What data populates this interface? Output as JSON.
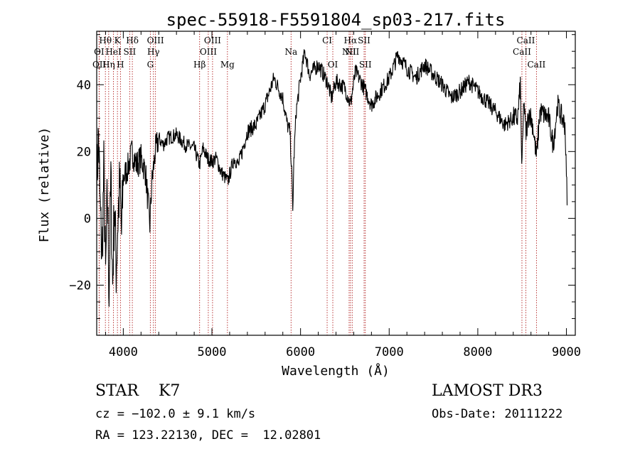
{
  "chart_data": {
    "type": "line",
    "title": "spec-55918-F5591804_sp03-217.fits",
    "xlabel": "Wavelength (Å)",
    "ylabel": "Flux (relative)",
    "xlim": [
      3700,
      9100
    ],
    "ylim": [
      -35,
      56
    ],
    "xticks": [
      4000,
      5000,
      6000,
      7000,
      8000,
      9000
    ],
    "yticks": [
      -20,
      0,
      20,
      40
    ],
    "grid": false,
    "line_color": "#000000",
    "marker_color": "#b22222",
    "spectrum_nodes": [
      [
        3700,
        10
      ],
      [
        3720,
        25
      ],
      [
        3740,
        2
      ],
      [
        3760,
        -12
      ],
      [
        3780,
        14
      ],
      [
        3800,
        -18
      ],
      [
        3820,
        8
      ],
      [
        3840,
        -22
      ],
      [
        3860,
        12
      ],
      [
        3880,
        -20
      ],
      [
        3900,
        5
      ],
      [
        3920,
        -15
      ],
      [
        3940,
        0
      ],
      [
        3960,
        10
      ],
      [
        3980,
        -5
      ],
      [
        4000,
        12
      ],
      [
        4050,
        15
      ],
      [
        4100,
        20
      ],
      [
        4150,
        16
      ],
      [
        4200,
        18
      ],
      [
        4250,
        14
      ],
      [
        4300,
        -2
      ],
      [
        4320,
        10
      ],
      [
        4360,
        20
      ],
      [
        4400,
        24
      ],
      [
        4450,
        22
      ],
      [
        4500,
        24
      ],
      [
        4600,
        25
      ],
      [
        4700,
        22
      ],
      [
        4800,
        21
      ],
      [
        4860,
        16
      ],
      [
        4900,
        21
      ],
      [
        4950,
        18
      ],
      [
        5000,
        17
      ],
      [
        5050,
        18
      ],
      [
        5100,
        14
      ],
      [
        5180,
        11
      ],
      [
        5250,
        18
      ],
      [
        5300,
        16
      ],
      [
        5400,
        26
      ],
      [
        5500,
        28
      ],
      [
        5600,
        34
      ],
      [
        5700,
        42
      ],
      [
        5800,
        36
      ],
      [
        5850,
        28
      ],
      [
        5880,
        26
      ],
      [
        5900,
        14
      ],
      [
        5912,
        2
      ],
      [
        5925,
        18
      ],
      [
        5950,
        32
      ],
      [
        6000,
        42
      ],
      [
        6050,
        50
      ],
      [
        6100,
        43
      ],
      [
        6200,
        46
      ],
      [
        6300,
        41
      ],
      [
        6350,
        36
      ],
      [
        6400,
        41
      ],
      [
        6500,
        39
      ],
      [
        6563,
        34
      ],
      [
        6620,
        44
      ],
      [
        6700,
        40
      ],
      [
        6800,
        34
      ],
      [
        6900,
        38
      ],
      [
        7000,
        42
      ],
      [
        7100,
        49
      ],
      [
        7200,
        45
      ],
      [
        7300,
        42
      ],
      [
        7400,
        46
      ],
      [
        7500,
        43
      ],
      [
        7600,
        40
      ],
      [
        7700,
        36
      ],
      [
        7800,
        38
      ],
      [
        7900,
        41
      ],
      [
        8000,
        38
      ],
      [
        8100,
        35
      ],
      [
        8200,
        32
      ],
      [
        8300,
        28
      ],
      [
        8400,
        30
      ],
      [
        8450,
        30
      ],
      [
        8480,
        40
      ],
      [
        8498,
        14
      ],
      [
        8520,
        36
      ],
      [
        8542,
        25
      ],
      [
        8580,
        32
      ],
      [
        8620,
        28
      ],
      [
        8662,
        18
      ],
      [
        8700,
        32
      ],
      [
        8800,
        30
      ],
      [
        8850,
        22
      ],
      [
        8900,
        34
      ],
      [
        8950,
        30
      ],
      [
        8985,
        28
      ],
      [
        9000,
        12
      ],
      [
        9010,
        6
      ]
    ],
    "lines": [
      {
        "label": "Hθ",
        "wl": 3798,
        "row": 1
      },
      {
        "label": "K",
        "wl": 3934,
        "row": 1
      },
      {
        "label": "Hδ",
        "wl": 4102,
        "row": 1
      },
      {
        "label": "OIII",
        "wl": 4363,
        "row": 1
      },
      {
        "label": "OIII",
        "wl": 5007,
        "row": 1
      },
      {
        "label": "CI",
        "wl": 6300,
        "row": 1
      },
      {
        "label": "Hα",
        "wl": 6563,
        "row": 1
      },
      {
        "label": "SII",
        "wl": 6717,
        "row": 1
      },
      {
        "label": "CaII",
        "wl": 8542,
        "row": 1
      },
      {
        "label": "OI",
        "wl": 3727,
        "row": 2
      },
      {
        "label": "HeI",
        "wl": 3889,
        "row": 2
      },
      {
        "label": "SII",
        "wl": 4072,
        "row": 2
      },
      {
        "label": "Hγ",
        "wl": 4340,
        "row": 2
      },
      {
        "label": "OIII",
        "wl": 4959,
        "row": 2
      },
      {
        "label": "Na",
        "wl": 5893,
        "row": 2
      },
      {
        "label": "NII",
        "wl": 6548,
        "row": 2
      },
      {
        "label": "NII",
        "wl": 6583,
        "row": 2
      },
      {
        "label": "CaII",
        "wl": 8498,
        "row": 2
      },
      {
        "label": "OII",
        "wl": 3729,
        "row": 3
      },
      {
        "label": "Hη",
        "wl": 3835,
        "row": 3
      },
      {
        "label": "H",
        "wl": 3968,
        "row": 3
      },
      {
        "label": "G",
        "wl": 4305,
        "row": 3
      },
      {
        "label": "Hβ",
        "wl": 4861,
        "row": 3
      },
      {
        "label": "Mg",
        "wl": 5175,
        "row": 3
      },
      {
        "label": "OI",
        "wl": 6364,
        "row": 3
      },
      {
        "label": "SII",
        "wl": 6731,
        "row": 3
      },
      {
        "label": "CaII",
        "wl": 8662,
        "row": 3
      }
    ]
  },
  "info": {
    "star_class": "STAR    K7",
    "survey": "LAMOST DR3",
    "cz": "cz = −102.0 ± 9.1 km/s",
    "obs_date": "Obs-Date: 20111222",
    "coords": "RA = 123.22130, DEC =  12.02801"
  }
}
